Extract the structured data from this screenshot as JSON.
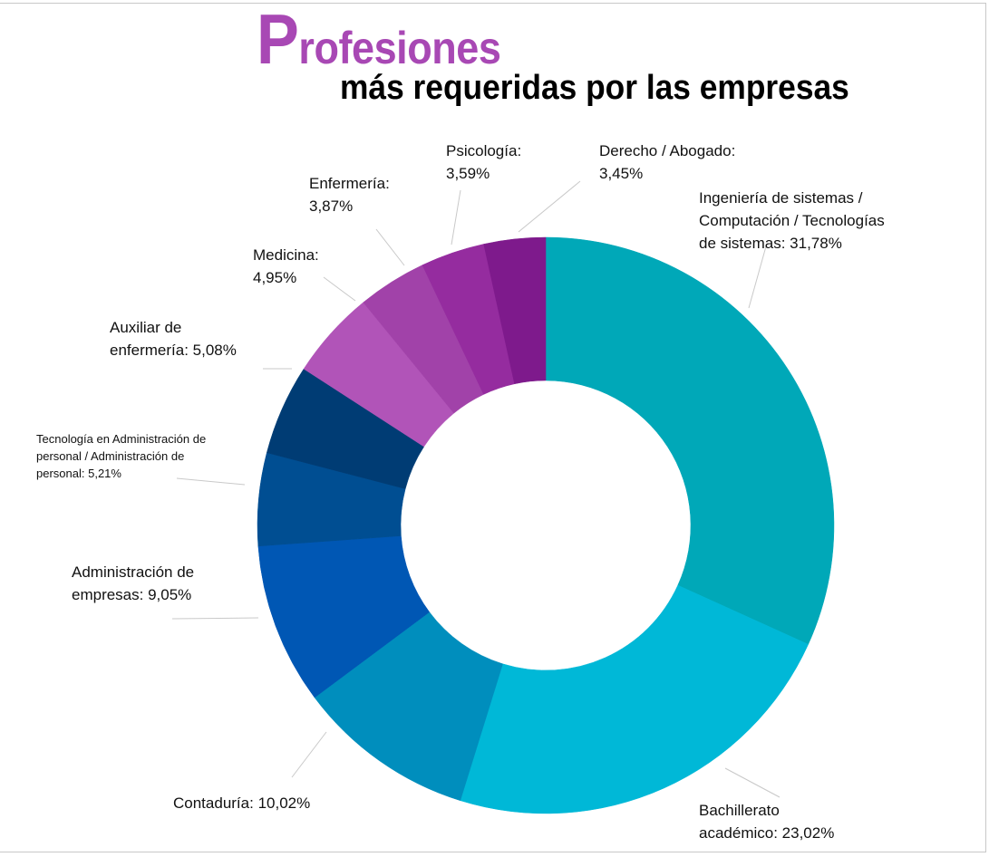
{
  "header": {
    "title": "Profesiones",
    "subtitle": "más requeridas por las empresas"
  },
  "chart_data": {
    "type": "pie",
    "variant": "donut",
    "title": "Profesiones más requeridas por las empresas",
    "legend": "none (data labels with leader lines)",
    "slices": [
      {
        "label": "Ingeniería de sistemas / Computación / Tecnologías de sistemas",
        "value": 31.78,
        "value_label": "31,78%",
        "color": "#00A8B8"
      },
      {
        "label": "Bachillerato académico",
        "value": 23.02,
        "value_label": "23,02%",
        "color": "#00B8D7"
      },
      {
        "label": "Contaduría",
        "value": 10.02,
        "value_label": "10,02%",
        "color": "#008EBD"
      },
      {
        "label": "Administración de empresas",
        "value": 9.05,
        "value_label": "9,05%",
        "color": "#0057B4"
      },
      {
        "label": "Tecnología en Administración de personal / Administración de personal",
        "value": 5.21,
        "value_label": "5,21%",
        "color": "#004E92"
      },
      {
        "label": "Auxiliar de enfermería",
        "value": 5.08,
        "value_label": "5,08%",
        "color": "#003C74"
      },
      {
        "label": "Medicina",
        "value": 4.95,
        "value_label": "4,95%",
        "color": "#B154B8"
      },
      {
        "label": "Enfermería",
        "value": 3.87,
        "value_label": "3,87%",
        "color": "#A142A9"
      },
      {
        "label": "Psicología",
        "value": 3.59,
        "value_label": "3,59%",
        "color": "#952C9F"
      },
      {
        "label": "Derecho / Abogado",
        "value": 3.45,
        "value_label": "3,45%",
        "color": "#7E1A8C"
      }
    ]
  }
}
